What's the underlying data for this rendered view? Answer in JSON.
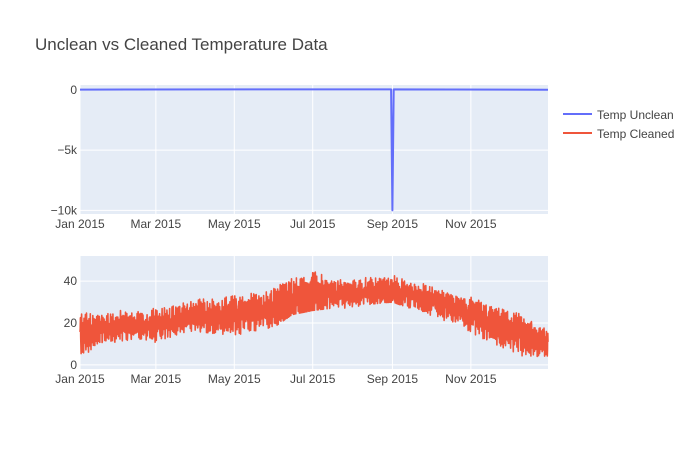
{
  "figure": {
    "title": "Unclean vs Cleaned Temperature Data"
  },
  "colors": {
    "plot_bg": "#e5ecf6",
    "grid": "#ffffff",
    "text": "#444444",
    "title": "#444444",
    "series_unclean": "#636efa",
    "series_cleaned": "#ef553b"
  },
  "legend": {
    "position": "top-right",
    "items": [
      "Temp Unclean",
      "Temp Cleaned"
    ]
  },
  "chart_data": [
    {
      "type": "line",
      "title": "",
      "xlabel": "",
      "ylabel": "",
      "xlim": [
        "2015-01-01",
        "2015-12-31"
      ],
      "ylim": [
        -10300,
        400
      ],
      "x_ticks": [
        "2015-01-01",
        "2015-03-01",
        "2015-05-01",
        "2015-07-01",
        "2015-09-01",
        "2015-11-01"
      ],
      "x_tick_labels": [
        "Jan 2015",
        "Mar 2015",
        "May 2015",
        "Jul 2015",
        "Sep 2015",
        "Nov 2015"
      ],
      "y_ticks": [
        0,
        -5000,
        -10000
      ],
      "y_tick_labels": [
        "0",
        "−5k",
        "−10k"
      ],
      "grid": true,
      "series": [
        {
          "name": "Temp Unclean",
          "x": [
            "2015-01-01",
            "2015-06-15",
            "2015-08-31",
            "2015-09-01",
            "2015-09-02",
            "2015-12-31"
          ],
          "y": [
            20,
            35,
            35,
            -10000,
            33,
            10
          ]
        }
      ]
    },
    {
      "type": "line",
      "title": "",
      "xlabel": "",
      "ylabel": "",
      "xlim": [
        "2015-01-01",
        "2015-12-31"
      ],
      "ylim": [
        -2,
        52
      ],
      "x_ticks": [
        "2015-01-01",
        "2015-03-01",
        "2015-05-01",
        "2015-07-01",
        "2015-09-01",
        "2015-11-01"
      ],
      "x_tick_labels": [
        "Jan 2015",
        "Mar 2015",
        "May 2015",
        "Jul 2015",
        "Sep 2015",
        "Nov 2015"
      ],
      "y_ticks": [
        0,
        20,
        40
      ],
      "y_tick_labels": [
        "0",
        "20",
        "40"
      ],
      "grid": true,
      "series": [
        {
          "name": "Temp Cleaned",
          "x": [
            "2015-01-01",
            "2015-01-15",
            "2015-02-01",
            "2015-02-15",
            "2015-03-01",
            "2015-03-15",
            "2015-04-01",
            "2015-04-15",
            "2015-05-01",
            "2015-05-15",
            "2015-06-01",
            "2015-06-15",
            "2015-07-01",
            "2015-07-15",
            "2015-08-01",
            "2015-08-15",
            "2015-09-01",
            "2015-09-15",
            "2015-10-01",
            "2015-10-15",
            "2015-11-01",
            "2015-11-15",
            "2015-12-01",
            "2015-12-15",
            "2015-12-31"
          ],
          "y_center": [
            14,
            17,
            18,
            19,
            19,
            21,
            23,
            23,
            24,
            25,
            27,
            31,
            33,
            34,
            34,
            35,
            35,
            33,
            31,
            28,
            24,
            20,
            16,
            13,
            10
          ],
          "y_min": [
            0,
            10,
            11,
            12,
            10,
            14,
            16,
            15,
            14,
            16,
            18,
            24,
            26,
            27,
            27,
            29,
            30,
            27,
            23,
            20,
            14,
            10,
            5,
            4,
            2
          ],
          "y_max": [
            25,
            26,
            27,
            27,
            27,
            30,
            33,
            33,
            34,
            35,
            38,
            47,
            50,
            42,
            41,
            44,
            46,
            41,
            38,
            36,
            33,
            28,
            26,
            24,
            16
          ]
        }
      ]
    }
  ]
}
